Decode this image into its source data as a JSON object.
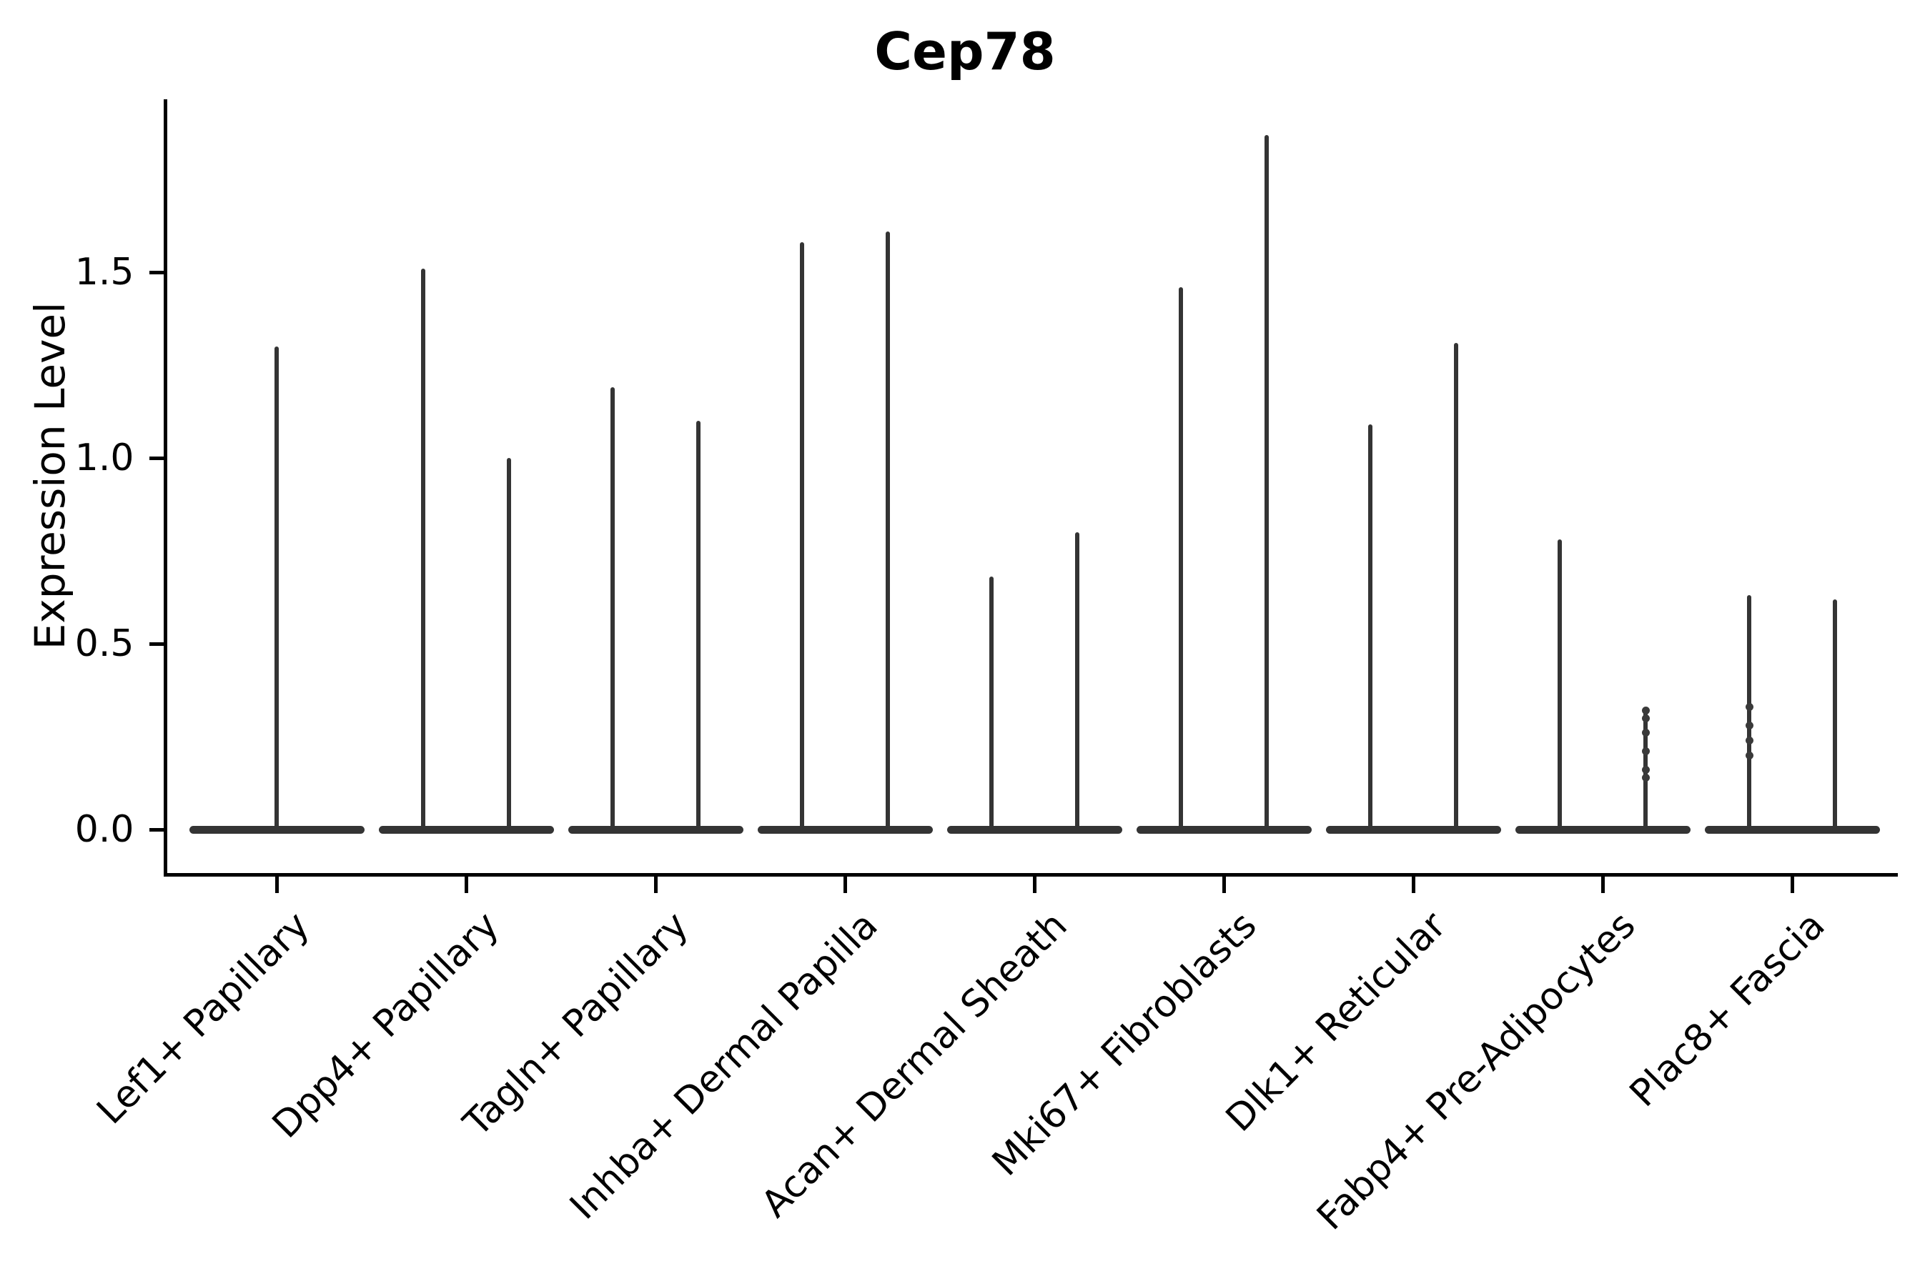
{
  "title": "Cep78",
  "chart_data": {
    "type": "violin",
    "title": "Cep78",
    "xlabel": "",
    "ylabel": "Expression Level",
    "grid": false,
    "legend": "none",
    "background": "#ffffff",
    "colors": {
      "violin": "#343434",
      "axis": "#000000",
      "points": "#3a3a3a"
    },
    "ylim": [
      -0.12,
      1.97
    ],
    "ytick_labels": [
      "0.0",
      "0.5",
      "1.0",
      "1.5"
    ],
    "ytick_values": [
      0.0,
      0.5,
      1.0,
      1.5
    ],
    "categories": [
      "Lef1+ Papillary",
      "Dpp4+ Papillary",
      "Tagln+ Papillary",
      "Inhba+ Dermal Papilla",
      "Acan+ Dermal Sheath",
      "Mki67+ Fibroblasts",
      "Dlk1+ Reticular",
      "Fabp4+ Pre-Adipocytes",
      "Plac8+ Fascia"
    ],
    "description": "Each violin has nearly all density at expression 0 (wide flat base) with a thin spike rising to the maximum expression value.",
    "violins": [
      {
        "category": "Lef1+ Papillary",
        "spikes": [
          {
            "offset": 0,
            "max": 1.3,
            "points": []
          }
        ]
      },
      {
        "category": "Dpp4+ Papillary",
        "spikes": [
          {
            "offset": -1,
            "max": 1.51,
            "points": []
          },
          {
            "offset": 1,
            "max": 1.0,
            "points": []
          }
        ]
      },
      {
        "category": "Tagln+ Papillary",
        "spikes": [
          {
            "offset": -1,
            "max": 1.19,
            "points": []
          },
          {
            "offset": 1,
            "max": 1.1,
            "points": []
          }
        ]
      },
      {
        "category": "Inhba+ Dermal Papilla",
        "spikes": [
          {
            "offset": -1,
            "max": 1.58,
            "points": []
          },
          {
            "offset": 1,
            "max": 1.61,
            "points": []
          }
        ]
      },
      {
        "category": "Acan+ Dermal Sheath",
        "spikes": [
          {
            "offset": -1,
            "max": 0.68,
            "points": []
          },
          {
            "offset": 1,
            "max": 0.8,
            "points": []
          }
        ]
      },
      {
        "category": "Mki67+ Fibroblasts",
        "spikes": [
          {
            "offset": -1,
            "max": 1.46,
            "points": []
          },
          {
            "offset": 1,
            "max": 1.87,
            "points": []
          }
        ]
      },
      {
        "category": "Dlk1+ Reticular",
        "spikes": [
          {
            "offset": -1,
            "max": 1.09,
            "points": []
          },
          {
            "offset": 1,
            "max": 1.31,
            "points": []
          }
        ]
      },
      {
        "category": "Fabp4+ Pre-Adipocytes",
        "spikes": [
          {
            "offset": -1,
            "max": 0.78,
            "points": []
          },
          {
            "offset": 1,
            "max": 0.32,
            "points": [
              0.32,
              0.3,
              0.26,
              0.21,
              0.16,
              0.14
            ]
          }
        ]
      },
      {
        "category": "Plac8+ Fascia",
        "spikes": [
          {
            "offset": -1,
            "max": 0.63,
            "points": [
              0.33,
              0.28,
              0.24,
              0.2
            ]
          },
          {
            "offset": 1,
            "max": 0.62,
            "points": []
          }
        ]
      }
    ]
  }
}
